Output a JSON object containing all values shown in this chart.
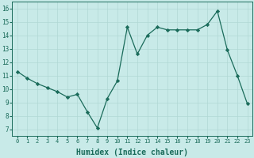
{
  "x": [
    0,
    1,
    2,
    3,
    4,
    5,
    6,
    7,
    8,
    9,
    10,
    11,
    12,
    13,
    14,
    15,
    16,
    17,
    18,
    19,
    20,
    21,
    22,
    23
  ],
  "y": [
    11.3,
    10.8,
    10.4,
    10.1,
    9.8,
    9.4,
    9.6,
    8.3,
    7.1,
    9.3,
    10.6,
    14.6,
    12.6,
    14.0,
    14.6,
    14.4,
    14.4,
    14.4,
    14.4,
    14.8,
    15.8,
    12.9,
    11.0,
    8.9
  ],
  "line_color": "#1a6b5a",
  "marker": "D",
  "marker_size": 2.2,
  "bg_color": "#c8eae8",
  "grid_color": "#b0d8d4",
  "tick_color": "#1a6b5a",
  "xlabel": "Humidex (Indice chaleur)",
  "xlabel_fontsize": 7,
  "xtick_fontsize": 5,
  "ytick_fontsize": 5.5,
  "xticks": [
    0,
    1,
    2,
    3,
    4,
    5,
    6,
    7,
    8,
    9,
    10,
    11,
    12,
    13,
    14,
    15,
    16,
    17,
    18,
    19,
    20,
    21,
    22,
    23
  ],
  "yticks": [
    7,
    8,
    9,
    10,
    11,
    12,
    13,
    14,
    15,
    16
  ],
  "ylim": [
    6.5,
    16.5
  ],
  "xlim": [
    -0.5,
    23.5
  ]
}
